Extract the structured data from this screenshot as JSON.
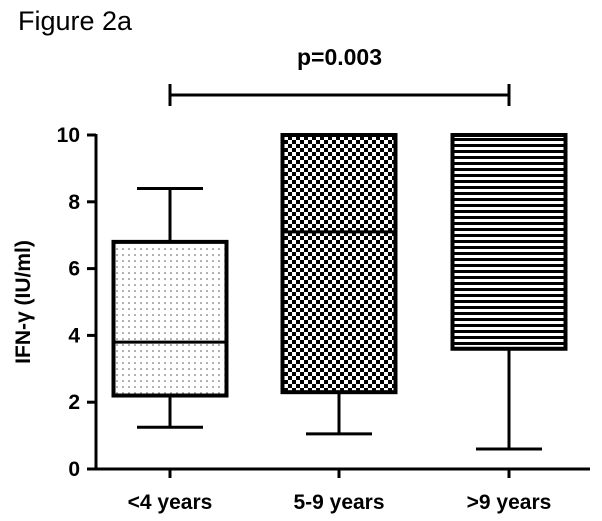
{
  "figure_label": "Figure 2a",
  "chart_data": {
    "type": "box",
    "title": "",
    "ylabel": "IFN-γ (IU/ml)",
    "xlabel": "",
    "ylim": [
      0,
      10
    ],
    "yticks": [
      0,
      2,
      4,
      6,
      8,
      10
    ],
    "grid": false,
    "categories": [
      "<4 years",
      "5-9 years",
      ">9 years"
    ],
    "boxes": [
      {
        "category": "<4 years",
        "min": 1.25,
        "q1": 2.2,
        "median": 3.8,
        "q3": 6.8,
        "max": 8.4,
        "fill": "dots"
      },
      {
        "category": "5-9 years",
        "min": 1.05,
        "q1": 2.3,
        "median": 7.1,
        "q3": 10.0,
        "max": 10.0,
        "fill": "checkerboard"
      },
      {
        "category": ">9 years",
        "min": 0.6,
        "q1": 3.6,
        "median": 10.0,
        "q3": 10.0,
        "max": 10.0,
        "fill": "horizontal-lines"
      }
    ],
    "annotation": {
      "text": "p=0.003",
      "from": "<4 years",
      "to": ">9 years"
    }
  }
}
